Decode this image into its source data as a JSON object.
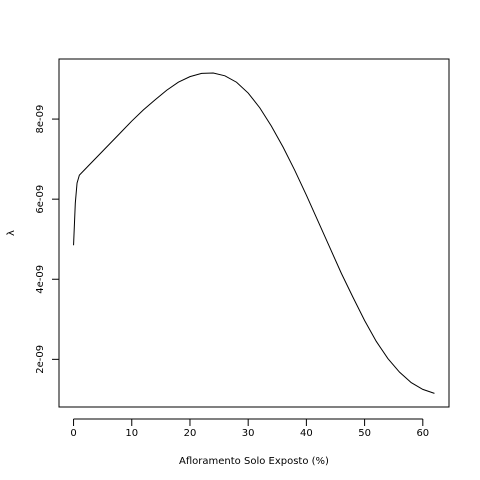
{
  "chart_data": {
    "type": "line",
    "xlabel": "Afloramento Solo Exposto (%)",
    "ylabel": "λ",
    "xlim": [
      -2.5,
      64.5
    ],
    "ylim": [
      8.1e-10,
      9.5e-09
    ],
    "x_ticks": [
      0,
      10,
      20,
      30,
      40,
      50,
      60
    ],
    "x_tick_labels": [
      "0",
      "10",
      "20",
      "30",
      "40",
      "50",
      "60"
    ],
    "y_ticks": [
      2e-09,
      4e-09,
      6e-09,
      8e-09
    ],
    "y_tick_labels": [
      "2e-09",
      "4e-09",
      "6e-09",
      "8e-09"
    ],
    "grid": false,
    "legend": "none",
    "line_color": "#000000",
    "series": [
      {
        "x": [
          0,
          0.3,
          0.6,
          1,
          2,
          4,
          6,
          8,
          10,
          12,
          14,
          16,
          18,
          20,
          22,
          24,
          26,
          28,
          30,
          32,
          34,
          36,
          38,
          40,
          42,
          44,
          46,
          48,
          50,
          52,
          54,
          56,
          58,
          60,
          62
        ],
        "values": [
          4.85e-09,
          5.9e-09,
          6.4e-09,
          6.6e-09,
          6.75e-09,
          7.05e-09,
          7.35e-09,
          7.65e-09,
          7.95e-09,
          8.23e-09,
          8.48e-09,
          8.72e-09,
          8.92e-09,
          9.06e-09,
          9.14e-09,
          9.15e-09,
          9.08e-09,
          8.92e-09,
          8.65e-09,
          8.28e-09,
          7.82e-09,
          7.3e-09,
          6.72e-09,
          6.1e-09,
          5.45e-09,
          4.8e-09,
          4.15e-09,
          3.55e-09,
          2.97e-09,
          2.45e-09,
          2.02e-09,
          1.68e-09,
          1.42e-09,
          1.25e-09,
          1.15e-09
        ]
      }
    ]
  }
}
